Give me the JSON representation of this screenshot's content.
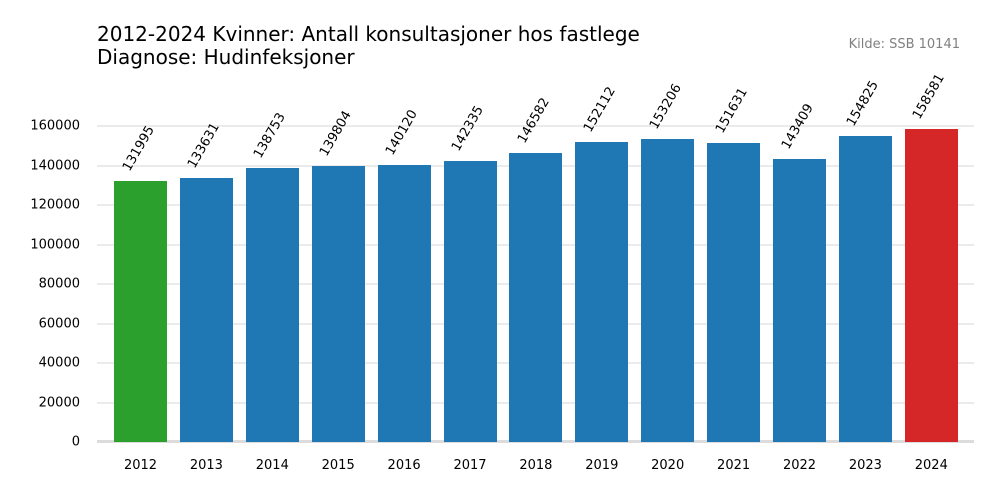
{
  "header": {
    "title_line1": "2012-2024 Kvinner: Antall konsultasjoner hos fastlege",
    "title_line2": "Diagnose: Hudinfeksjoner",
    "source": "Kilde: SSB 10141"
  },
  "colors": {
    "default_bar": "#1f77b4",
    "first_bar": "#2ca02c",
    "last_bar": "#d62728",
    "grid": "#ebebeb",
    "source_text": "#808080"
  },
  "chart_data": {
    "type": "bar",
    "title": "2012-2024 Kvinner: Antall konsultasjoner hos fastlege\nDiagnose: Hudinfeksjoner",
    "subtitle": "Kilde: SSB 10141",
    "xlabel": "",
    "ylabel": "",
    "categories": [
      "2012",
      "2013",
      "2014",
      "2015",
      "2016",
      "2017",
      "2018",
      "2019",
      "2020",
      "2021",
      "2022",
      "2023",
      "2024"
    ],
    "values": [
      131995,
      133631,
      138753,
      139804,
      140120,
      142335,
      146582,
      152112,
      153206,
      151631,
      143409,
      154825,
      158581
    ],
    "bar_colors": [
      "#2ca02c",
      "#1f77b4",
      "#1f77b4",
      "#1f77b4",
      "#1f77b4",
      "#1f77b4",
      "#1f77b4",
      "#1f77b4",
      "#1f77b4",
      "#1f77b4",
      "#1f77b4",
      "#1f77b4",
      "#d62728"
    ],
    "yticks": [
      0,
      20000,
      40000,
      60000,
      80000,
      100000,
      120000,
      140000,
      160000
    ],
    "ylim": [
      0,
      160000
    ],
    "grid": true,
    "data_labels": true,
    "data_label_rotation": 60,
    "legend": null
  }
}
